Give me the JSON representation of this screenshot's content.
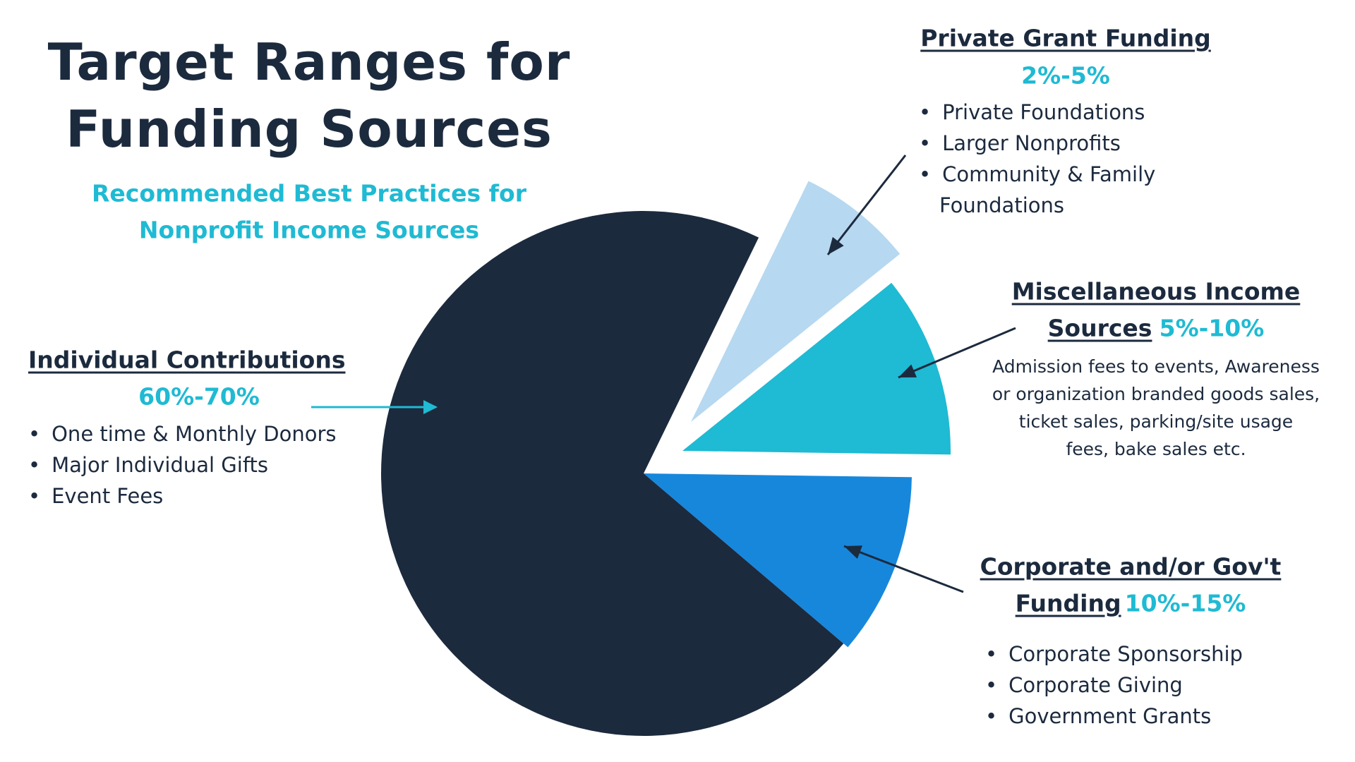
{
  "title_lines": [
    "Target Ranges for",
    "Funding Sources"
  ],
  "subtitle_lines": [
    "Recommended Best Practices for",
    "Nonprofit Income Sources"
  ],
  "colors": {
    "dark": "#1c2a3e",
    "teal": "#1fbad3",
    "blue": "#1787dc",
    "light": "#b6d8f0"
  },
  "sections": {
    "individual": {
      "heading": "Individual Contributions",
      "range": "60%-70%",
      "bullets": [
        "One time & Monthly Donors",
        "Major Individual Gifts",
        "Event Fees"
      ]
    },
    "private": {
      "heading": "Private Grant Funding",
      "range": "2%-5%",
      "bullets": [
        "Private Foundations",
        "Larger Nonprofits",
        "Community & Family",
        "Foundations"
      ]
    },
    "misc": {
      "heading_line1": "Miscellaneous Income",
      "heading_line2": "Sources",
      "range": "5%-10%",
      "description": [
        "Admission fees to events, Awareness",
        "or organization branded goods sales,",
        "ticket sales, parking/site usage",
        "fees, bake sales etc."
      ]
    },
    "corporate": {
      "heading_line1": "Corporate and/or Gov't",
      "heading_line2": "Funding",
      "range": "10%-15%",
      "bullets": [
        "Corporate Sponsorship",
        "Corporate Giving",
        "Government Grants"
      ]
    }
  },
  "chart_data": {
    "type": "pie",
    "title": "Target Ranges for Funding Sources",
    "slices": [
      {
        "label": "Private Grant Funding",
        "range": "2%-5%",
        "value": 7,
        "color": "#b6d8f0",
        "exploded": true
      },
      {
        "label": "Miscellaneous Income Sources",
        "range": "5%-10%",
        "value": 11,
        "color": "#1fbad3",
        "exploded": true
      },
      {
        "label": "Corporate and/or Gov't Funding",
        "range": "10%-15%",
        "value": 11,
        "color": "#1787dc",
        "exploded": false
      },
      {
        "label": "Individual Contributions",
        "range": "60%-70%",
        "value": 71,
        "color": "#1c2a3e",
        "exploded": false
      }
    ],
    "legend": "none"
  }
}
